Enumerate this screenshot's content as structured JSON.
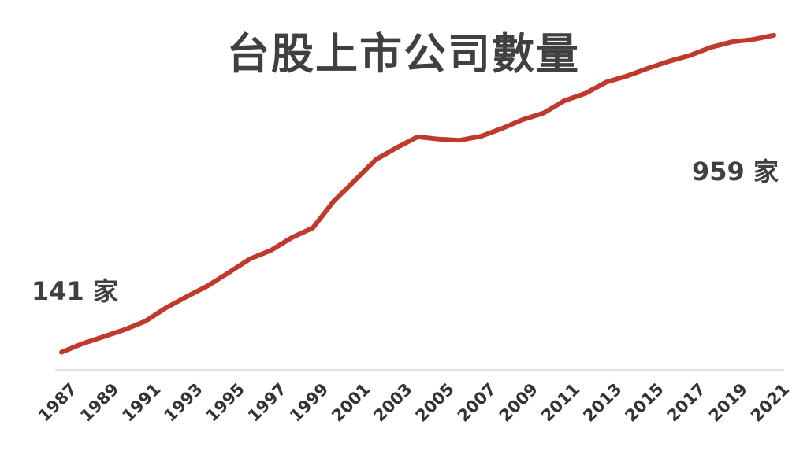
{
  "chart_data": {
    "type": "line",
    "title": "台股上市公司數量",
    "xlabel": "",
    "ylabel": "",
    "grid": false,
    "legend": "none",
    "ylim": [
      0,
      1050
    ],
    "x": [
      1987,
      1988,
      1989,
      1990,
      1991,
      1992,
      1993,
      1994,
      1995,
      1996,
      1997,
      1998,
      1999,
      2000,
      2001,
      2002,
      2003,
      2004,
      2005,
      2006,
      2007,
      2008,
      2009,
      2010,
      2011,
      2012,
      2013,
      2014,
      2015,
      2016,
      2017,
      2018,
      2019,
      2020,
      2021
    ],
    "x_tick_labels": [
      "1987",
      "1989",
      "1991",
      "1993",
      "1995",
      "1997",
      "1999",
      "2001",
      "2003",
      "2005",
      "2007",
      "2009",
      "2011",
      "2013",
      "2015",
      "2017",
      "2019",
      "2021"
    ],
    "series": [
      {
        "values": [
          141,
          163,
          181,
          199,
          221,
          256,
          285,
          313,
          347,
          382,
          404,
          437,
          462,
          531,
          584,
          638,
          669,
          697,
          691,
          688,
          698,
          718,
          741,
          758,
          790,
          809,
          838,
          854,
          874,
          892,
          907,
          928,
          942,
          948,
          959
        ],
        "color": "#c0392b"
      }
    ],
    "annotations": [
      {
        "x": 1987,
        "text": "141 家"
      },
      {
        "x": 2021,
        "text": "959 家"
      }
    ]
  },
  "colors": {
    "line": "#c0392b",
    "text": "#404040",
    "axis": "#d9d9d9"
  }
}
